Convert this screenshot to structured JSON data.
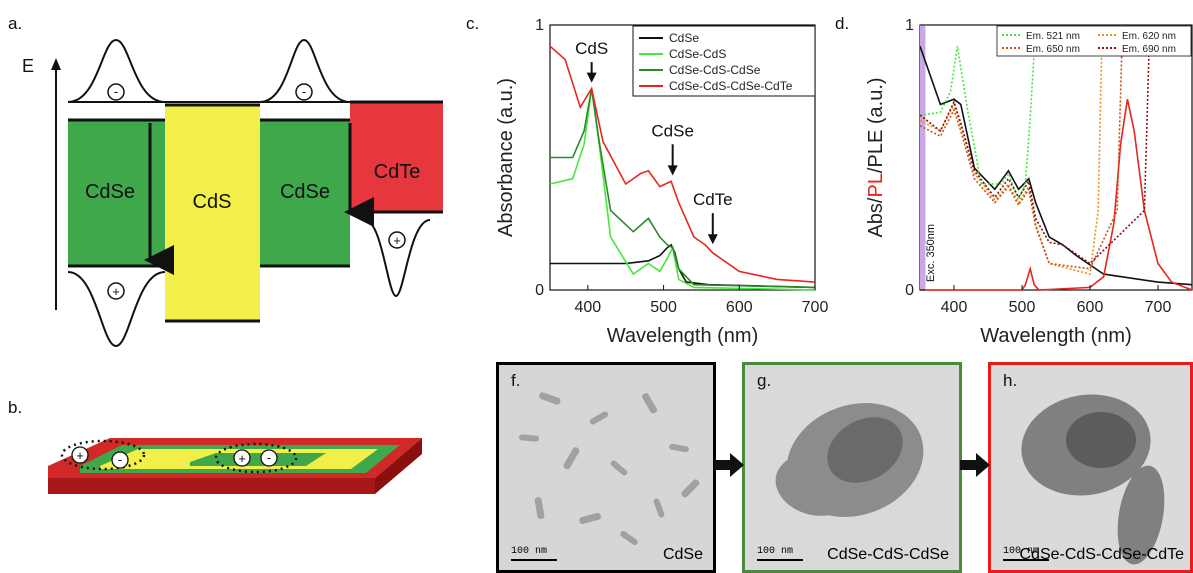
{
  "panel_labels": {
    "a": "a.",
    "b": "b.",
    "c": "c.",
    "d": "d."
  },
  "band_diagram": {
    "axis_label": "E",
    "materials": [
      "CdSe",
      "CdS",
      "CdSe",
      "CdTe"
    ],
    "electron_symbol": "-",
    "hole_symbol": "+"
  },
  "colors": {
    "cdse": "#3fa84b",
    "cds": "#f3ef4a",
    "cdte": "#e5373d",
    "black": "#111111",
    "bright_green": "#44e83a",
    "dark_green": "#2a8a2a",
    "red": "#e8251e",
    "orange": "#e8901a",
    "dark_orange": "#c8501a",
    "dark_red": "#8a1010",
    "purple": "#c8a8e8"
  },
  "chart_data": [
    {
      "type": "line",
      "xlabel": "Wavelength (nm)",
      "ylabel": "Absorbance (a.u.)",
      "xlim": [
        350,
        700
      ],
      "ylim": [
        0,
        1
      ],
      "x_ticks": [
        "400",
        "500",
        "600",
        "700"
      ],
      "y_ticks": [
        "0",
        "1"
      ],
      "legend": "top-right",
      "annotations": [
        "CdS",
        "CdSe",
        "CdTe"
      ],
      "series": [
        {
          "name": "CdSe",
          "color": "#111111",
          "x": [
            350,
            400,
            450,
            480,
            495,
            505,
            510,
            515,
            520,
            530,
            560,
            700
          ],
          "y": [
            0.1,
            0.1,
            0.1,
            0.11,
            0.13,
            0.16,
            0.17,
            0.14,
            0.08,
            0.03,
            0.02,
            0.01
          ]
        },
        {
          "name": "CdSe-CdS",
          "color": "#44e83a",
          "x": [
            350,
            380,
            395,
            405,
            415,
            430,
            460,
            480,
            495,
            505,
            512,
            520,
            540,
            700
          ],
          "y": [
            0.4,
            0.42,
            0.55,
            0.76,
            0.55,
            0.2,
            0.06,
            0.1,
            0.07,
            0.12,
            0.16,
            0.04,
            0.01,
            0.0
          ]
        },
        {
          "name": "CdSe-CdS-CdSe",
          "color": "#2a8a2a",
          "x": [
            350,
            380,
            395,
            405,
            415,
            430,
            460,
            480,
            495,
            505,
            512,
            520,
            540,
            700
          ],
          "y": [
            0.5,
            0.5,
            0.6,
            0.76,
            0.56,
            0.3,
            0.22,
            0.27,
            0.2,
            0.17,
            0.16,
            0.08,
            0.02,
            0.01
          ]
        },
        {
          "name": "CdSe-CdS-CdSe-CdTe",
          "color": "#e8251e",
          "x": [
            350,
            370,
            390,
            405,
            420,
            450,
            470,
            480,
            495,
            510,
            520,
            540,
            555,
            565,
            600,
            650,
            700
          ],
          "y": [
            0.92,
            0.87,
            0.69,
            0.76,
            0.56,
            0.4,
            0.44,
            0.45,
            0.39,
            0.41,
            0.33,
            0.2,
            0.17,
            0.14,
            0.07,
            0.04,
            0.03
          ]
        }
      ]
    },
    {
      "type": "line",
      "xlabel": "Wavelength (nm)",
      "ylabel_parts": [
        "Abs/",
        "PL",
        "/PLE (a.u.)"
      ],
      "xlim": [
        350,
        750
      ],
      "ylim": [
        0,
        1
      ],
      "x_ticks": [
        "400",
        "500",
        "600",
        "700"
      ],
      "y_ticks": [
        "0",
        "1"
      ],
      "legend": "top-right",
      "annotations": [
        "Exc. 350nm"
      ],
      "legend_entries": [
        "Em. 521 nm",
        "Em. 620 nm",
        "Em. 650 nm",
        "Em. 690 nm"
      ],
      "series": [
        {
          "name": "Abs",
          "color": "#111111",
          "x": [
            350,
            380,
            400,
            410,
            430,
            460,
            480,
            495,
            510,
            520,
            540,
            560,
            580,
            620,
            700,
            750
          ],
          "y": [
            0.92,
            0.7,
            0.72,
            0.7,
            0.46,
            0.38,
            0.45,
            0.38,
            0.42,
            0.33,
            0.2,
            0.17,
            0.13,
            0.06,
            0.03,
            0.02
          ]
        },
        {
          "name": "PL",
          "color": "#e8251e",
          "x": [
            350,
            500,
            505,
            512,
            518,
            525,
            600,
            620,
            635,
            645,
            655,
            665,
            680,
            700,
            720,
            750
          ],
          "y": [
            0.0,
            0.0,
            0.02,
            0.08,
            0.02,
            0.0,
            0.01,
            0.05,
            0.25,
            0.55,
            0.72,
            0.6,
            0.3,
            0.1,
            0.03,
            0.0
          ]
        },
        {
          "name": "Em. 521 nm",
          "color": "#44e83a",
          "x": [
            350,
            380,
            395,
            405,
            420,
            440,
            470,
            480,
            495,
            505,
            512,
            518,
            524
          ],
          "y": [
            0.66,
            0.67,
            0.75,
            0.92,
            0.68,
            0.4,
            0.4,
            0.44,
            0.34,
            0.4,
            0.65,
            0.9,
            1.0
          ]
        },
        {
          "name": "Em. 620 nm",
          "color": "#e8901a",
          "x": [
            350,
            380,
            400,
            410,
            430,
            460,
            480,
            495,
            510,
            520,
            540,
            600,
            612,
            618
          ],
          "y": [
            0.64,
            0.6,
            0.7,
            0.62,
            0.44,
            0.34,
            0.4,
            0.33,
            0.39,
            0.25,
            0.1,
            0.06,
            0.3,
            1.0
          ]
        },
        {
          "name": "Em. 650 nm",
          "color": "#c8501a",
          "x": [
            350,
            380,
            400,
            410,
            430,
            460,
            480,
            495,
            510,
            520,
            540,
            600,
            640,
            648
          ],
          "y": [
            0.62,
            0.58,
            0.68,
            0.6,
            0.42,
            0.33,
            0.39,
            0.32,
            0.38,
            0.24,
            0.1,
            0.08,
            0.3,
            1.0
          ]
        },
        {
          "name": "Em. 690 nm",
          "color": "#8a1010",
          "x": [
            350,
            380,
            400,
            410,
            430,
            460,
            480,
            495,
            510,
            520,
            540,
            560,
            600,
            680,
            688
          ],
          "y": [
            0.66,
            0.6,
            0.71,
            0.63,
            0.45,
            0.35,
            0.42,
            0.35,
            0.41,
            0.27,
            0.18,
            0.17,
            0.1,
            0.3,
            1.0
          ]
        }
      ]
    }
  ],
  "tem": [
    {
      "letter": "f.",
      "name": "CdSe",
      "scale": "100 nm",
      "border": "#111111"
    },
    {
      "letter": "g.",
      "name": "CdSe-CdS-CdSe",
      "scale": "100 nm",
      "border": "#4a8a3a"
    },
    {
      "letter": "h.",
      "name": "CdSe-CdS-CdSe-CdTe",
      "scale": "100 nm",
      "border": "#e81c1c"
    }
  ]
}
